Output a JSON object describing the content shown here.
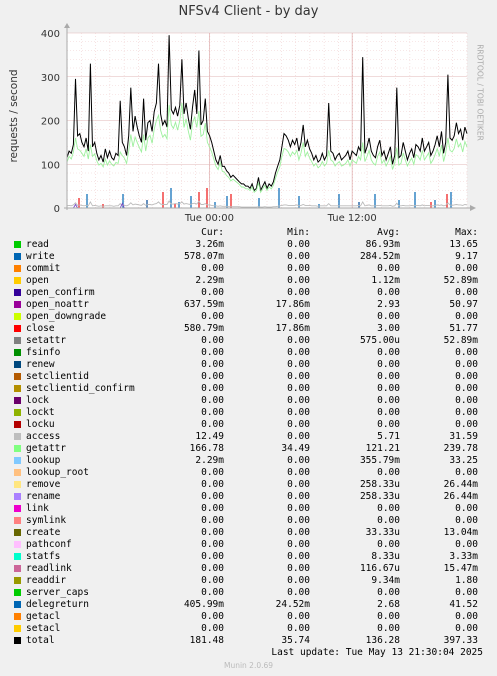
{
  "header": {
    "title": "NFSv4 Client - by day",
    "ylabel": "requests / second",
    "watermark": "RRDTOOL / TOBI OETIKER"
  },
  "chart_data": {
    "type": "line",
    "title": "NFSv4 Client - by day",
    "ylabel": "requests / second",
    "ylim": [
      0,
      400
    ],
    "yticks": [
      "0",
      "100",
      "200",
      "300",
      "400"
    ],
    "xticks": [
      "Tue 00:00",
      "Tue 12:00"
    ],
    "grid": true,
    "series": [
      {
        "name": "total",
        "color": "#000000",
        "values": [
          115,
          130,
          125,
          145,
          295,
          165,
          170,
          150,
          140,
          160,
          130,
          330,
          140,
          150,
          125,
          110,
          120,
          105,
          135,
          115,
          130,
          115,
          110,
          125,
          120,
          245,
          150,
          140,
          120,
          165,
          275,
          175,
          210,
          185,
          165,
          150,
          250,
          155,
          195,
          200,
          175,
          220,
          240,
          330,
          215,
          190,
          200,
          185,
          395,
          225,
          215,
          230,
          210,
          235,
          340,
          215,
          240,
          205,
          180,
          230,
          270,
          215,
          360,
          190,
          200,
          250,
          175,
          165,
          150,
          130,
          110,
          100,
          120,
          95,
          95,
          85,
          80,
          70,
          75,
          70,
          65,
          60,
          55,
          55,
          50,
          50,
          45,
          55,
          40,
          45,
          70,
          40,
          50,
          60,
          45,
          55,
          50,
          60,
          80,
          95,
          110,
          140,
          170,
          165,
          155,
          140,
          155,
          145,
          160,
          130,
          150,
          190,
          140,
          155,
          135,
          125,
          110,
          120,
          105,
          110,
          125,
          110,
          120,
          240,
          130,
          125,
          110,
          120,
          125,
          110,
          115,
          120,
          130,
          110,
          130,
          125,
          120,
          140,
          130,
          345,
          125,
          140,
          160,
          130,
          120,
          115,
          140,
          155,
          120,
          130,
          110,
          125,
          140,
          100,
          120,
          275,
          115,
          120,
          150,
          130,
          110,
          125,
          135,
          115,
          145,
          140,
          130,
          160,
          130,
          140,
          150,
          120,
          130,
          145,
          165,
          140,
          175,
          125,
          150,
          305,
          160,
          155,
          165,
          195,
          170,
          180,
          155,
          185,
          170
        ]
      },
      {
        "name": "getattr",
        "color": "#9ef09e",
        "values": [
          105,
          118,
          112,
          128,
          160,
          135,
          132,
          125,
          118,
          135,
          112,
          145,
          118,
          124,
          108,
          98,
          102,
          94,
          112,
          98,
          108,
          100,
          96,
          104,
          102,
          128,
          120,
          114,
          102,
          130,
          168,
          140,
          162,
          150,
          138,
          128,
          168,
          130,
          160,
          166,
          148,
          180,
          200,
          212,
          178,
          162,
          168,
          158,
          236,
          190,
          182,
          196,
          178,
          200,
          240,
          184,
          204,
          176,
          155,
          194,
          208,
          184,
          222,
          164,
          168,
          194,
          150,
          140,
          128,
          112,
          96,
          88,
          104,
          84,
          82,
          74,
          70,
          62,
          66,
          62,
          58,
          54,
          48,
          48,
          44,
          44,
          40,
          48,
          36,
          40,
          58,
          36,
          44,
          52,
          40,
          48,
          44,
          52,
          68,
          82,
          94,
          118,
          136,
          134,
          128,
          118,
          128,
          122,
          132,
          110,
          126,
          150,
          118,
          128,
          114,
          106,
          96,
          102,
          92,
          96,
          106,
          96,
          102,
          132,
          110,
          106,
          96,
          102,
          106,
          96,
          98,
          102,
          110,
          96,
          110,
          106,
          102,
          118,
          110,
          150,
          106,
          118,
          132,
          110,
          102,
          98,
          118,
          128,
          102,
          110,
          96,
          106,
          118,
          88,
          102,
          138,
          98,
          102,
          126,
          110,
          96,
          106,
          114,
          100,
          122,
          118,
          110,
          132,
          110,
          118,
          126,
          102,
          110,
          122,
          136,
          118,
          144,
          106,
          126,
          160,
          132,
          128,
          136,
          158,
          140,
          148,
          128,
          152,
          140
        ]
      },
      {
        "name": "access",
        "color": "#bbbbbb",
        "values": [
          5,
          6,
          5,
          7,
          12,
          6,
          7,
          6,
          5,
          6,
          5,
          14,
          5,
          6,
          5,
          4,
          5,
          4,
          5,
          5,
          5,
          5,
          4,
          5,
          5,
          10,
          6,
          6,
          5,
          7,
          12,
          7,
          9,
          8,
          7,
          6,
          10,
          6,
          8,
          8,
          7,
          9,
          10,
          14,
          9,
          8,
          8,
          8,
          16,
          9,
          9,
          10,
          9,
          10,
          14,
          9,
          10,
          9,
          8,
          10,
          11,
          9,
          15,
          8,
          8,
          10,
          7,
          7,
          6,
          5,
          5,
          4,
          5,
          4,
          4,
          4,
          3,
          3,
          3,
          3,
          3,
          3,
          2,
          2,
          2,
          2,
          2,
          2,
          2,
          2,
          3,
          2,
          2,
          3,
          2,
          2,
          2,
          3,
          3,
          4,
          5,
          6,
          7,
          7,
          6,
          6,
          6,
          6,
          7,
          5,
          6,
          8,
          6,
          6,
          6,
          5,
          5,
          5,
          4,
          5,
          5,
          5,
          5,
          10,
          5,
          5,
          5,
          5,
          5,
          5,
          5,
          5,
          5,
          5,
          5,
          5,
          5,
          6,
          5,
          14,
          5,
          6,
          7,
          5,
          5,
          5,
          6,
          6,
          5,
          5,
          5,
          5,
          6,
          4,
          5,
          11,
          5,
          5,
          6,
          5,
          5,
          5,
          6,
          5,
          6,
          6,
          5,
          7,
          5,
          6,
          6,
          5,
          5,
          6,
          7,
          6,
          7,
          5,
          6,
          12,
          7,
          6,
          7,
          8,
          7,
          7,
          6,
          8,
          7
        ]
      },
      {
        "name": "open_noattr",
        "color": "#7a4fc8",
        "values": [
          0,
          0,
          0,
          0,
          8,
          0,
          0,
          0,
          0,
          0,
          0,
          0,
          0,
          0,
          0,
          0,
          0,
          0,
          0,
          0,
          0,
          0,
          0,
          0,
          0,
          0,
          10,
          0,
          0,
          0,
          0,
          0,
          0,
          0,
          0,
          0,
          0,
          0,
          0,
          0,
          0,
          0,
          0,
          0,
          0,
          0,
          0,
          0,
          0,
          0,
          0,
          0,
          0,
          0,
          0,
          0,
          0,
          0,
          0,
          0,
          0,
          0,
          0,
          0,
          0,
          0,
          0,
          0,
          0,
          0,
          0,
          0,
          0,
          0,
          0,
          0,
          0,
          0,
          0,
          0,
          0,
          0,
          0,
          0,
          0,
          0,
          0,
          0,
          0,
          0,
          0,
          0,
          0,
          0,
          0,
          0,
          0,
          0,
          0,
          0,
          0,
          0,
          0,
          0,
          0,
          0,
          0,
          0,
          0,
          0,
          0,
          0,
          0,
          0,
          0,
          0,
          0,
          0,
          0,
          0,
          0,
          0,
          0,
          0,
          0,
          0,
          0,
          0,
          0,
          0,
          0,
          0,
          0,
          0,
          0,
          0,
          0,
          0,
          0,
          0,
          0,
          0,
          0,
          0,
          0,
          0,
          0,
          0,
          0,
          0,
          0,
          0,
          0,
          0,
          0,
          0,
          0,
          0,
          0,
          0,
          0,
          0,
          0,
          0,
          0,
          0,
          0,
          0,
          0,
          0,
          0,
          0,
          0,
          0,
          0,
          0,
          0,
          0,
          0,
          0,
          0,
          0,
          0,
          0,
          0,
          0,
          0,
          0,
          0
        ]
      }
    ],
    "spikes": [
      {
        "series": "close",
        "color": "#ee1111",
        "positions": [
          0.03,
          0.09,
          0.2,
          0.24,
          0.27,
          0.33,
          0.35,
          0.41,
          0.73,
          0.91,
          0.95
        ]
      },
      {
        "series": "delegreturn",
        "color": "#0066b3",
        "positions": [
          0.05,
          0.14,
          0.2,
          0.26,
          0.28,
          0.31,
          0.37,
          0.4,
          0.48,
          0.53,
          0.58,
          0.63,
          0.68,
          0.73,
          0.77,
          0.83,
          0.87,
          0.92,
          0.96
        ]
      }
    ]
  },
  "legend": {
    "headers": {
      "cur": "Cur:",
      "min": "Min:",
      "avg": "Avg:",
      "max": "Max:"
    },
    "rows": [
      {
        "name": "read",
        "color": "#00cc00",
        "cur": "3.26m",
        "min": "0.00",
        "avg": "86.93m",
        "max": "13.65"
      },
      {
        "name": "write",
        "color": "#0066b3",
        "cur": "578.07m",
        "min": "0.00",
        "avg": "284.52m",
        "max": "9.17"
      },
      {
        "name": "commit",
        "color": "#ff8000",
        "cur": "0.00",
        "min": "0.00",
        "avg": "0.00",
        "max": "0.00"
      },
      {
        "name": "open",
        "color": "#ffcc00",
        "cur": "2.29m",
        "min": "0.00",
        "avg": "1.12m",
        "max": "52.89m"
      },
      {
        "name": "open_confirm",
        "color": "#330099",
        "cur": "0.00",
        "min": "0.00",
        "avg": "0.00",
        "max": "0.00"
      },
      {
        "name": "open_noattr",
        "color": "#990099",
        "cur": "637.59m",
        "min": "17.86m",
        "avg": "2.93",
        "max": "50.97"
      },
      {
        "name": "open_downgrade",
        "color": "#ccff00",
        "cur": "0.00",
        "min": "0.00",
        "avg": "0.00",
        "max": "0.00"
      },
      {
        "name": "close",
        "color": "#ff0000",
        "cur": "580.79m",
        "min": "17.86m",
        "avg": "3.00",
        "max": "51.77"
      },
      {
        "name": "setattr",
        "color": "#808080",
        "cur": "0.00",
        "min": "0.00",
        "avg": "575.00u",
        "max": "52.89m"
      },
      {
        "name": "fsinfo",
        "color": "#008f00",
        "cur": "0.00",
        "min": "0.00",
        "avg": "0.00",
        "max": "0.00"
      },
      {
        "name": "renew",
        "color": "#00487d",
        "cur": "0.00",
        "min": "0.00",
        "avg": "0.00",
        "max": "0.00"
      },
      {
        "name": "setclientid",
        "color": "#b35a00",
        "cur": "0.00",
        "min": "0.00",
        "avg": "0.00",
        "max": "0.00"
      },
      {
        "name": "setclientid_confirm",
        "color": "#b38f00",
        "cur": "0.00",
        "min": "0.00",
        "avg": "0.00",
        "max": "0.00"
      },
      {
        "name": "lock",
        "color": "#6b006b",
        "cur": "0.00",
        "min": "0.00",
        "avg": "0.00",
        "max": "0.00"
      },
      {
        "name": "lockt",
        "color": "#8fb300",
        "cur": "0.00",
        "min": "0.00",
        "avg": "0.00",
        "max": "0.00"
      },
      {
        "name": "locku",
        "color": "#b30000",
        "cur": "0.00",
        "min": "0.00",
        "avg": "0.00",
        "max": "0.00"
      },
      {
        "name": "access",
        "color": "#bebebe",
        "cur": "12.49",
        "min": "0.00",
        "avg": "5.71",
        "max": "31.59"
      },
      {
        "name": "getattr",
        "color": "#80ff80",
        "cur": "166.78",
        "min": "34.49",
        "avg": "121.21",
        "max": "239.78"
      },
      {
        "name": "lookup",
        "color": "#80c9ff",
        "cur": "2.29m",
        "min": "0.00",
        "avg": "355.79m",
        "max": "33.25"
      },
      {
        "name": "lookup_root",
        "color": "#ffc080",
        "cur": "0.00",
        "min": "0.00",
        "avg": "0.00",
        "max": "0.00"
      },
      {
        "name": "remove",
        "color": "#ffe680",
        "cur": "0.00",
        "min": "0.00",
        "avg": "258.33u",
        "max": "26.44m"
      },
      {
        "name": "rename",
        "color": "#aa80ff",
        "cur": "0.00",
        "min": "0.00",
        "avg": "258.33u",
        "max": "26.44m"
      },
      {
        "name": "link",
        "color": "#ee00cc",
        "cur": "0.00",
        "min": "0.00",
        "avg": "0.00",
        "max": "0.00"
      },
      {
        "name": "symlink",
        "color": "#ff8080",
        "cur": "0.00",
        "min": "0.00",
        "avg": "0.00",
        "max": "0.00"
      },
      {
        "name": "create",
        "color": "#666600",
        "cur": "0.00",
        "min": "0.00",
        "avg": "33.33u",
        "max": "13.04m"
      },
      {
        "name": "pathconf",
        "color": "#ffbfff",
        "cur": "0.00",
        "min": "0.00",
        "avg": "0.00",
        "max": "0.00"
      },
      {
        "name": "statfs",
        "color": "#00ffcc",
        "cur": "0.00",
        "min": "0.00",
        "avg": "8.33u",
        "max": "3.33m"
      },
      {
        "name": "readlink",
        "color": "#cc6699",
        "cur": "0.00",
        "min": "0.00",
        "avg": "116.67u",
        "max": "15.47m"
      },
      {
        "name": "readdir",
        "color": "#999900",
        "cur": "0.00",
        "min": "0.00",
        "avg": "9.34m",
        "max": "1.80"
      },
      {
        "name": "server_caps",
        "color": "#00cc00",
        "cur": "0.00",
        "min": "0.00",
        "avg": "0.00",
        "max": "0.00"
      },
      {
        "name": "delegreturn",
        "color": "#0066b3",
        "cur": "405.99m",
        "min": "24.52m",
        "avg": "2.68",
        "max": "41.52"
      },
      {
        "name": "getacl",
        "color": "#ff8000",
        "cur": "0.00",
        "min": "0.00",
        "avg": "0.00",
        "max": "0.00"
      },
      {
        "name": "setacl",
        "color": "#ffcc00",
        "cur": "0.00",
        "min": "0.00",
        "avg": "0.00",
        "max": "0.00"
      },
      {
        "name": "total",
        "color": "#000000",
        "cur": "181.48",
        "min": "35.74",
        "avg": "136.28",
        "max": "397.33"
      }
    ]
  },
  "footer": {
    "last_update": "Last update: Tue May 13 21:30:04 2025",
    "munin": "Munin 2.0.69"
  }
}
